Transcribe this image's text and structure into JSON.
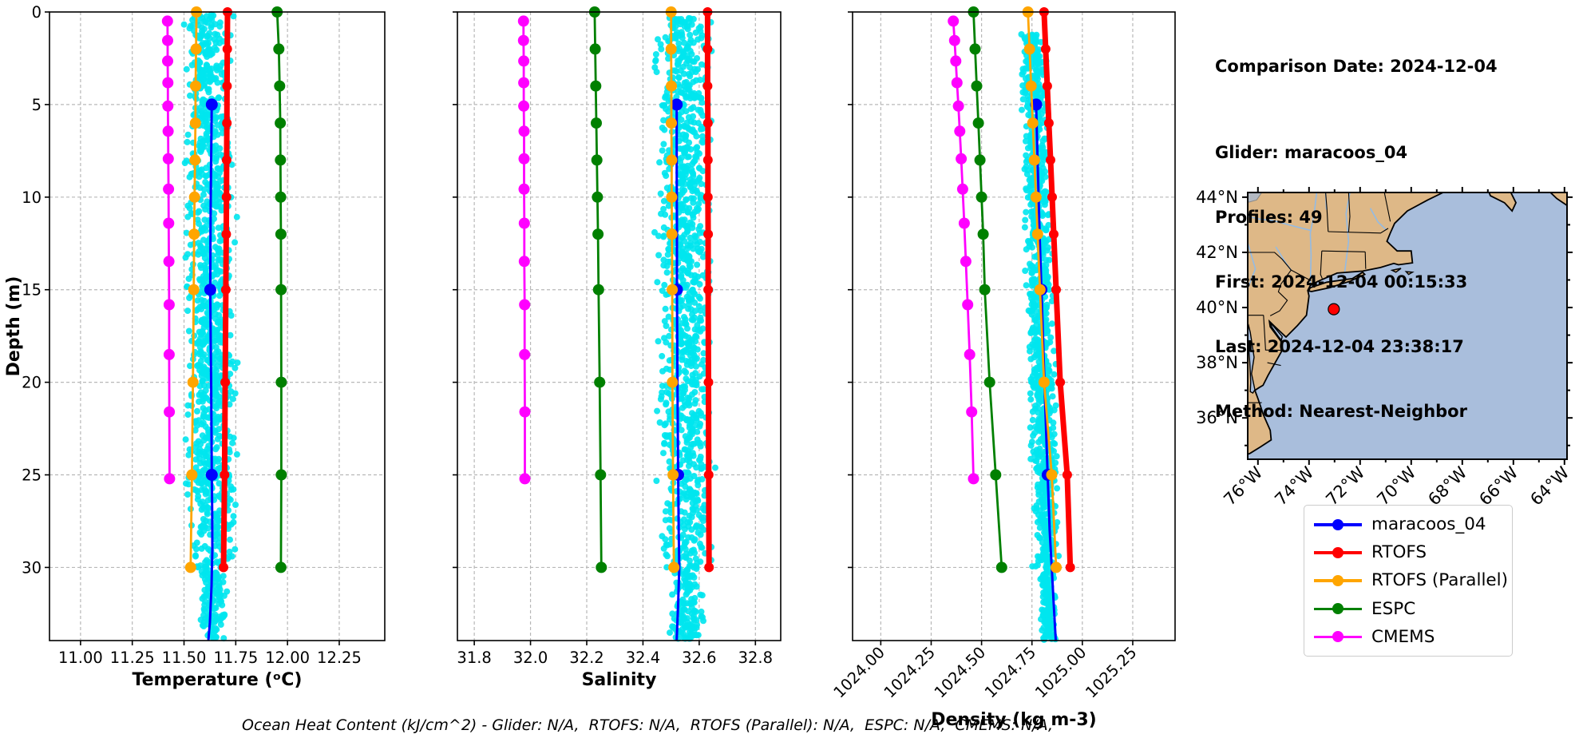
{
  "info": {
    "comparison_date": "Comparison Date: 2024-12-04",
    "glider": "Glider: maracoos_04",
    "profiles": "Profiles: 49",
    "first": "First: 2024-12-04 00:15:33",
    "last": "Last: 2024-12-04 23:38:17",
    "method": "Method: Nearest-Neighbor"
  },
  "footer": {
    "text": "Ocean Heat Content (kJ/cm^2) - Glider: N/A,  RTOFS: N/A,  RTOFS (Parallel): N/A,  ESPC: N/A,  CMEMS: N/A,"
  },
  "legend": {
    "items": [
      {
        "label": "maracoos_04",
        "color": "#0000FF"
      },
      {
        "label": "RTOFS",
        "color": "#FF0000"
      },
      {
        "label": "RTOFS (Parallel)",
        "color": "#FFA500"
      },
      {
        "label": "ESPC",
        "color": "#008000"
      },
      {
        "label": "CMEMS",
        "color": "#FF00FF"
      }
    ]
  },
  "map": {
    "extent": {
      "lon": [
        -76.4,
        -63.9
      ],
      "lat": [
        34.5,
        44.17
      ]
    },
    "lat_ticks": [
      {
        "v": 44,
        "label": "44°N"
      },
      {
        "v": 42,
        "label": "42°N"
      },
      {
        "v": 40,
        "label": "40°N"
      },
      {
        "v": 38,
        "label": "38°N"
      },
      {
        "v": 36,
        "label": "36°N"
      }
    ],
    "lat_minor": [
      43,
      41,
      39,
      37,
      35
    ],
    "lon_ticks": [
      {
        "v": -76,
        "label": "76°W"
      },
      {
        "v": -74,
        "label": "74°W"
      },
      {
        "v": -72,
        "label": "72°W"
      },
      {
        "v": -70,
        "label": "70°W"
      },
      {
        "v": -68,
        "label": "68°W"
      },
      {
        "v": -66,
        "label": "66°W"
      },
      {
        "v": -64,
        "label": "64°W"
      }
    ],
    "lon_minor": [
      -75,
      -73,
      -71,
      -69,
      -67,
      -65
    ],
    "glider_position": {
      "lon": -73.03,
      "lat": 39.94
    },
    "colors": {
      "land": "#DEB887",
      "ocean": "#A9BEDC",
      "lake": "#B3B9C2",
      "river": "#93BBE4",
      "coast": "#000000",
      "marker": "#FF0000"
    }
  },
  "chart_data": [
    {
      "type": "line",
      "xlabel": "Temperature (ᵒC)",
      "xlim": [
        10.85,
        12.47
      ],
      "xticks": [
        11.0,
        11.25,
        11.5,
        11.75,
        12.0,
        12.25
      ],
      "xtick_labels": [
        "11.00",
        "11.25",
        "11.50",
        "11.75",
        "12.00",
        "12.25"
      ],
      "rotate_xticks": false,
      "ylabel": "Depth (m)",
      "ylim": [
        0,
        33.95
      ],
      "yticks": [
        0,
        5,
        10,
        15,
        20,
        25,
        30
      ],
      "scatter": {
        "name": "glider-raw-points",
        "color": "#00E5EE",
        "count": 1150,
        "seed": 11,
        "depth_range": [
          0.1,
          33.9
        ],
        "center": [
          11.615,
          11.64
        ],
        "sd": 0.05,
        "clip": [
          11.5,
          11.785
        ]
      },
      "series": [
        {
          "name": "CMEMS",
          "color": "#FF00FF",
          "width": 2.8,
          "marker": 7,
          "depths": [
            0.49,
            1.54,
            2.65,
            3.82,
            5.08,
            6.44,
            7.93,
            9.57,
            11.41,
            13.47,
            15.81,
            18.5,
            21.6,
            25.21
          ],
          "values": [
            11.42,
            11.421,
            11.421,
            11.422,
            11.422,
            11.423,
            11.424,
            11.425,
            11.426,
            11.427,
            11.428,
            11.428,
            11.429,
            11.43
          ]
        },
        {
          "name": "ESPC",
          "color": "#008000",
          "width": 2.8,
          "marker": 7,
          "depths": [
            0,
            2,
            4,
            6,
            8,
            10,
            12,
            15,
            20,
            25,
            30
          ],
          "values": [
            11.95,
            11.958,
            11.962,
            11.965,
            11.966,
            11.967,
            11.968,
            11.969,
            11.97,
            11.97,
            11.968
          ]
        },
        {
          "name": "maracoos_04",
          "color": "#0000FF",
          "width": 3,
          "marker": 7.5,
          "points": [
            [
              11.634,
              4.8
            ],
            [
              11.633,
              6
            ],
            [
              11.631,
              8
            ],
            [
              11.629,
              10
            ],
            [
              11.628,
              12
            ],
            [
              11.627,
              15
            ],
            [
              11.629,
              18
            ],
            [
              11.631,
              20
            ],
            [
              11.633,
              23
            ],
            [
              11.634,
              25
            ],
            [
              11.636,
              27
            ],
            [
              11.637,
              29
            ],
            [
              11.633,
              31
            ],
            [
              11.625,
              33
            ],
            [
              11.618,
              33.9
            ]
          ],
          "marker_points": [
            [
              11.634,
              5
            ],
            [
              11.627,
              15
            ],
            [
              11.634,
              25
            ]
          ]
        },
        {
          "name": "RTOFS (Parallel)",
          "color": "#FFA500",
          "width": 2.8,
          "marker": 7,
          "depths": [
            0,
            2,
            4,
            6,
            8,
            10,
            12,
            15,
            20,
            25,
            30
          ],
          "values": [
            11.56,
            11.558,
            11.556,
            11.555,
            11.553,
            11.551,
            11.549,
            11.547,
            11.543,
            11.538,
            11.532
          ]
        },
        {
          "name": "RTOFS",
          "color": "#FF0000",
          "width": 7,
          "marker": 6,
          "depths": [
            0,
            2,
            4,
            6,
            8,
            10,
            12,
            15,
            20,
            25,
            30
          ],
          "values": [
            11.71,
            11.709,
            11.708,
            11.707,
            11.706,
            11.705,
            11.704,
            11.702,
            11.699,
            11.696,
            11.691
          ]
        }
      ]
    },
    {
      "type": "line",
      "xlabel": "Salinity",
      "xlim": [
        31.74,
        32.89
      ],
      "xticks": [
        31.8,
        32.0,
        32.2,
        32.4,
        32.6,
        32.8
      ],
      "xtick_labels": [
        "31.8",
        "32.0",
        "32.2",
        "32.4",
        "32.6",
        "32.8"
      ],
      "rotate_xticks": false,
      "ylabel": "",
      "ylim": [
        0,
        33.95
      ],
      "yticks": [
        0,
        5,
        10,
        15,
        20,
        25,
        30
      ],
      "scatter": {
        "name": "glider-raw-points",
        "color": "#00E5EE",
        "count": 1150,
        "seed": 22,
        "depth_range": [
          0.3,
          33.9
        ],
        "center": [
          32.545,
          32.555
        ],
        "sd": 0.042,
        "clip": [
          32.435,
          32.665
        ]
      },
      "series": [
        {
          "name": "CMEMS",
          "color": "#FF00FF",
          "width": 2.8,
          "marker": 7,
          "depths": [
            0.49,
            1.54,
            2.65,
            3.82,
            5.08,
            6.44,
            7.93,
            9.57,
            11.41,
            13.47,
            15.81,
            18.5,
            21.6,
            25.21
          ],
          "values": [
            31.975,
            31.975,
            31.976,
            31.976,
            31.976,
            31.977,
            31.977,
            31.977,
            31.978,
            31.978,
            31.979,
            31.979,
            31.98,
            31.98
          ]
        },
        {
          "name": "ESPC",
          "color": "#008000",
          "width": 2.8,
          "marker": 7,
          "depths": [
            0,
            2,
            4,
            6,
            8,
            10,
            12,
            15,
            20,
            25,
            30
          ],
          "values": [
            32.228,
            32.23,
            32.232,
            32.234,
            32.236,
            32.238,
            32.24,
            32.242,
            32.246,
            32.249,
            32.252
          ]
        },
        {
          "name": "maracoos_04",
          "color": "#0000FF",
          "width": 3,
          "marker": 7.5,
          "points": [
            [
              32.52,
              4.8
            ],
            [
              32.52,
              8
            ],
            [
              32.521,
              12
            ],
            [
              32.521,
              15
            ],
            [
              32.522,
              18
            ],
            [
              32.523,
              21
            ],
            [
              32.525,
              25
            ],
            [
              32.527,
              28
            ],
            [
              32.529,
              30
            ],
            [
              32.525,
              32
            ],
            [
              32.52,
              33.9
            ]
          ],
          "marker_points": [
            [
              32.52,
              5
            ],
            [
              32.521,
              15
            ],
            [
              32.525,
              25
            ]
          ]
        },
        {
          "name": "RTOFS (Parallel)",
          "color": "#FFA500",
          "width": 2.8,
          "marker": 7,
          "depths": [
            0,
            2,
            4,
            6,
            8,
            10,
            12,
            15,
            20,
            25,
            30
          ],
          "values": [
            32.5,
            32.5,
            32.501,
            32.501,
            32.502,
            32.502,
            32.503,
            32.504,
            32.505,
            32.507,
            32.51
          ]
        },
        {
          "name": "RTOFS",
          "color": "#FF0000",
          "width": 7,
          "marker": 6,
          "depths": [
            0,
            2,
            4,
            6,
            8,
            10,
            12,
            15,
            20,
            25,
            30
          ],
          "values": [
            32.63,
            32.63,
            32.63,
            32.631,
            32.631,
            32.631,
            32.632,
            32.632,
            32.633,
            32.634,
            32.635
          ]
        }
      ]
    },
    {
      "type": "line",
      "xlabel": "Density (kg m-3)",
      "xlim": [
        1023.86,
        1025.46
      ],
      "xticks": [
        1024.0,
        1024.25,
        1024.5,
        1024.75,
        1025.0,
        1025.25
      ],
      "xtick_labels": [
        "1024.00",
        "1024.25",
        "1024.50",
        "1024.75",
        "1025.00",
        "1025.25"
      ],
      "rotate_xticks": true,
      "ylabel": "",
      "ylim": [
        0,
        33.95
      ],
      "yticks": [
        0,
        5,
        10,
        15,
        20,
        25,
        30
      ],
      "scatter": {
        "name": "glider-raw-points",
        "color": "#00E5EE",
        "count": 1150,
        "seed": 33,
        "depth_range": [
          1.2,
          33.9
        ],
        "center": [
          1024.75,
          1024.835
        ],
        "sd": 0.027,
        "clip": [
          1024.675,
          1024.885
        ]
      },
      "series": [
        {
          "name": "CMEMS",
          "color": "#FF00FF",
          "width": 2.8,
          "marker": 7,
          "depths": [
            0.49,
            1.54,
            2.65,
            3.82,
            5.08,
            6.44,
            7.93,
            9.57,
            11.41,
            13.47,
            15.81,
            18.5,
            21.6,
            25.21
          ],
          "values": [
            1024.36,
            1024.366,
            1024.372,
            1024.378,
            1024.385,
            1024.392,
            1024.399,
            1024.406,
            1024.414,
            1024.422,
            1024.431,
            1024.441,
            1024.451,
            1024.46
          ]
        },
        {
          "name": "ESPC",
          "color": "#008000",
          "width": 2.8,
          "marker": 7,
          "depths": [
            0,
            2,
            4,
            6,
            8,
            10,
            12,
            15,
            20,
            25,
            30
          ],
          "values": [
            1024.46,
            1024.468,
            1024.476,
            1024.484,
            1024.492,
            1024.5,
            1024.508,
            1024.516,
            1024.54,
            1024.57,
            1024.6
          ]
        },
        {
          "name": "maracoos_04",
          "color": "#0000FF",
          "width": 3,
          "marker": 7.5,
          "points": [
            [
              1024.77,
              4.8
            ],
            [
              1024.778,
              8
            ],
            [
              1024.788,
              12
            ],
            [
              1024.797,
              15
            ],
            [
              1024.806,
              18
            ],
            [
              1024.815,
              21
            ],
            [
              1024.828,
              25
            ],
            [
              1024.838,
              28
            ],
            [
              1024.848,
              30
            ],
            [
              1024.858,
              32
            ],
            [
              1024.868,
              33.9
            ]
          ],
          "marker_points": [
            [
              1024.771,
              5
            ],
            [
              1024.797,
              15
            ],
            [
              1024.828,
              25
            ]
          ]
        },
        {
          "name": "RTOFS (Parallel)",
          "color": "#FFA500",
          "width": 2.8,
          "marker": 7,
          "depths": [
            0,
            2,
            4,
            6,
            8,
            10,
            12,
            15,
            20,
            25,
            30
          ],
          "values": [
            1024.73,
            1024.738,
            1024.746,
            1024.754,
            1024.762,
            1024.77,
            1024.778,
            1024.79,
            1024.81,
            1024.848,
            1024.87
          ]
        },
        {
          "name": "RTOFS",
          "color": "#FF0000",
          "width": 7,
          "marker": 6,
          "depths": [
            0,
            2,
            4,
            6,
            8,
            10,
            12,
            15,
            20,
            25,
            30
          ],
          "values": [
            1024.81,
            1024.818,
            1024.826,
            1024.834,
            1024.842,
            1024.85,
            1024.858,
            1024.87,
            1024.89,
            1024.925,
            1024.94
          ]
        }
      ]
    }
  ]
}
